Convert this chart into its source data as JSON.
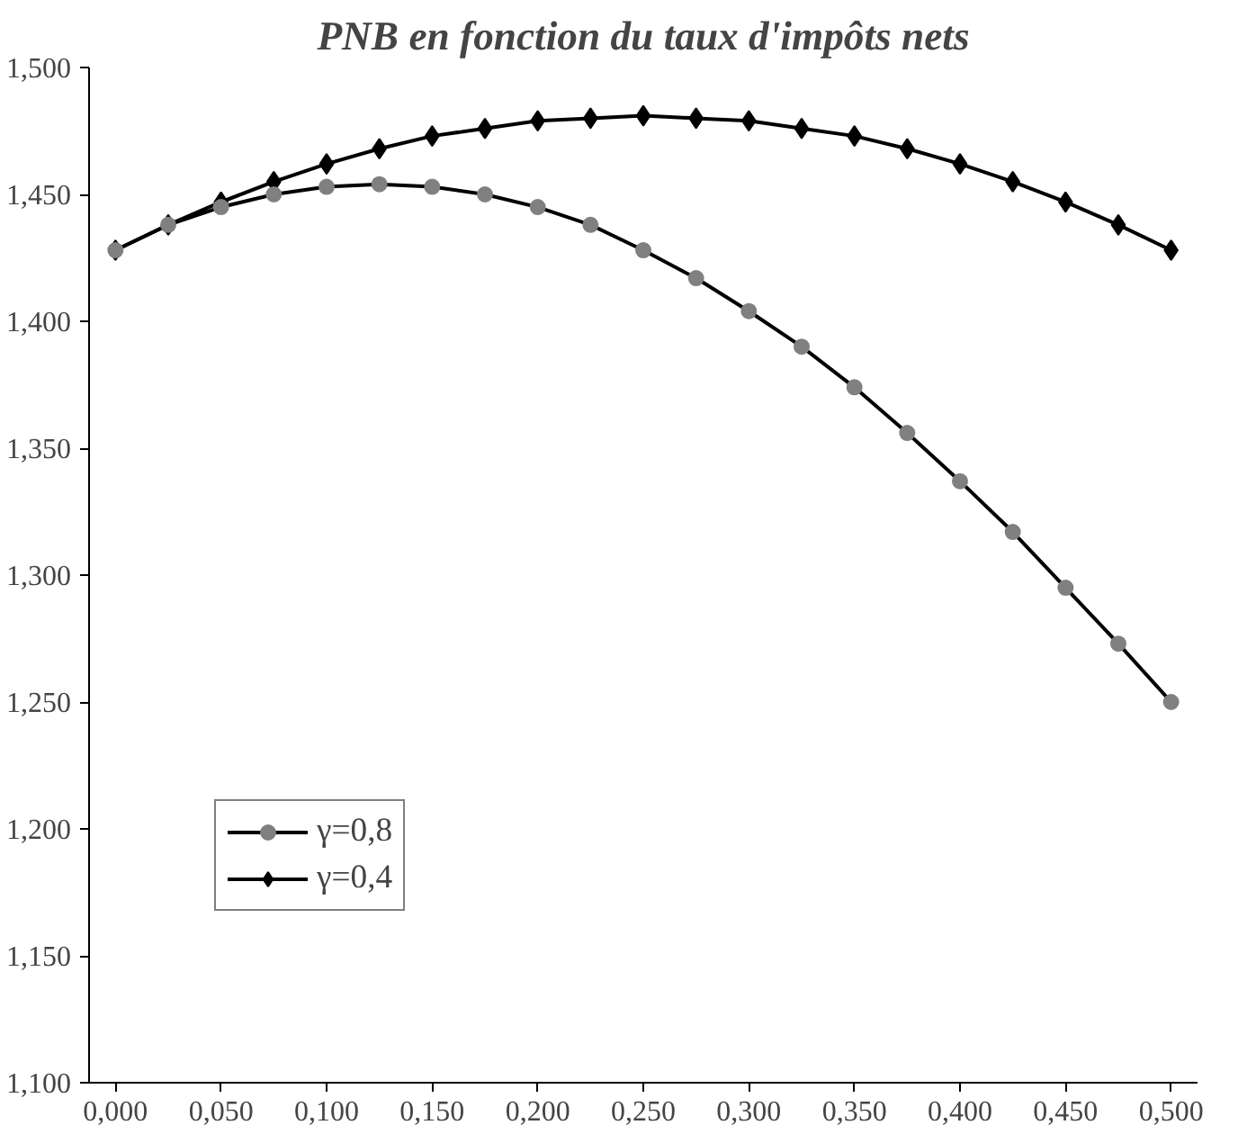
{
  "chart_data": {
    "type": "line",
    "title": "PNB en fonction du taux d'impôts nets",
    "x": [
      0,
      0.025,
      0.05,
      0.075,
      0.1,
      0.125,
      0.15,
      0.175,
      0.2,
      0.225,
      0.25,
      0.275,
      0.3,
      0.325,
      0.35,
      0.375,
      0.4,
      0.425,
      0.45,
      0.475,
      0.5
    ],
    "series": [
      {
        "name": "γ=0,8",
        "color": "#808080",
        "marker": "circle",
        "values": [
          1.428,
          1.438,
          1.445,
          1.45,
          1.453,
          1.454,
          1.453,
          1.45,
          1.445,
          1.438,
          1.428,
          1.417,
          1.404,
          1.39,
          1.374,
          1.356,
          1.337,
          1.317,
          1.295,
          1.273,
          1.25
        ]
      },
      {
        "name": "γ=0,4",
        "color": "#000000",
        "marker": "diamond",
        "values": [
          1.428,
          1.438,
          1.447,
          1.455,
          1.462,
          1.468,
          1.473,
          1.476,
          1.479,
          1.48,
          1.481,
          1.48,
          1.479,
          1.476,
          1.473,
          1.468,
          1.462,
          1.455,
          1.447,
          1.438,
          1.428
        ]
      }
    ],
    "xlim": [
      -0.0125,
      0.5125
    ],
    "xticks": [
      {
        "value": 0,
        "label": "0,000"
      },
      {
        "value": 0.05,
        "label": "0,050"
      },
      {
        "value": 0.1,
        "label": "0,100"
      },
      {
        "value": 0.15,
        "label": "0,150"
      },
      {
        "value": 0.2,
        "label": "0,200"
      },
      {
        "value": 0.25,
        "label": "0,250"
      },
      {
        "value": 0.3,
        "label": "0,300"
      },
      {
        "value": 0.35,
        "label": "0,350"
      },
      {
        "value": 0.4,
        "label": "0,400"
      },
      {
        "value": 0.45,
        "label": "0,450"
      },
      {
        "value": 0.5,
        "label": "0,500"
      }
    ],
    "ylim": [
      1.1,
      1.5
    ],
    "yticks": [
      {
        "value": 1.1,
        "label": "1,100"
      },
      {
        "value": 1.15,
        "label": "1,150"
      },
      {
        "value": 1.2,
        "label": "1,200"
      },
      {
        "value": 1.25,
        "label": "1,250"
      },
      {
        "value": 1.3,
        "label": "1,300"
      },
      {
        "value": 1.35,
        "label": "1,350"
      },
      {
        "value": 1.4,
        "label": "1,400"
      },
      {
        "value": 1.45,
        "label": "1,450"
      },
      {
        "value": 1.5,
        "label": "1,500"
      }
    ],
    "grid": false,
    "legend": "bottom left",
    "line_style": "solid"
  }
}
